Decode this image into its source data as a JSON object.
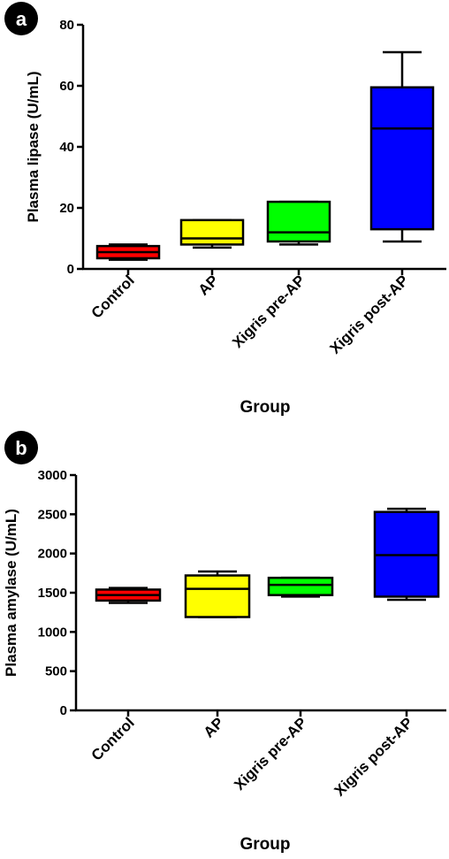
{
  "chart_data": [
    {
      "type": "boxplot",
      "panel_label": "a",
      "title": "",
      "xlabel": "Group",
      "ylabel": "Plasma lipase (U/mL)",
      "ylim": [
        0,
        80
      ],
      "yticks": [
        0,
        20,
        40,
        60,
        80
      ],
      "categories": [
        "Control",
        "AP",
        "Xigris pre-AP",
        "Xigris post-AP"
      ],
      "series": [
        {
          "category": "Control",
          "color": "#ff0000",
          "min": 3,
          "q1": 3.5,
          "median": 5.5,
          "q3": 7.5,
          "max": 8
        },
        {
          "category": "AP",
          "color": "#ffff00",
          "min": 7,
          "q1": 8,
          "median": 10,
          "q3": 16,
          "max": 16
        },
        {
          "category": "Xigris pre-AP",
          "color": "#00ff00",
          "min": 8,
          "q1": 9,
          "median": 12,
          "q3": 22,
          "max": 22
        },
        {
          "category": "Xigris post-AP",
          "color": "#0000ff",
          "min": 9,
          "q1": 13,
          "median": 46,
          "q3": 59.5,
          "max": 71
        }
      ]
    },
    {
      "type": "boxplot",
      "panel_label": "b",
      "title": "",
      "xlabel": "Group",
      "ylabel": "Plasma amylase (U/mL)",
      "ylim": [
        0,
        3000
      ],
      "yticks": [
        0,
        500,
        1000,
        1500,
        2000,
        2500,
        3000
      ],
      "categories": [
        "Control",
        "AP",
        "Xigris pre-AP",
        "Xigris post-AP"
      ],
      "series": [
        {
          "category": "Control",
          "color": "#ff0000",
          "min": 1370,
          "q1": 1400,
          "median": 1470,
          "q3": 1540,
          "max": 1560
        },
        {
          "category": "AP",
          "color": "#ffff00",
          "min": 1190,
          "q1": 1190,
          "median": 1550,
          "q3": 1720,
          "max": 1770
        },
        {
          "category": "Xigris pre-AP",
          "color": "#00ff00",
          "min": 1450,
          "q1": 1470,
          "median": 1600,
          "q3": 1690,
          "max": 1690
        },
        {
          "category": "Xigris post-AP",
          "color": "#0000ff",
          "min": 1410,
          "q1": 1450,
          "median": 1980,
          "q3": 2530,
          "max": 2570
        }
      ]
    }
  ]
}
